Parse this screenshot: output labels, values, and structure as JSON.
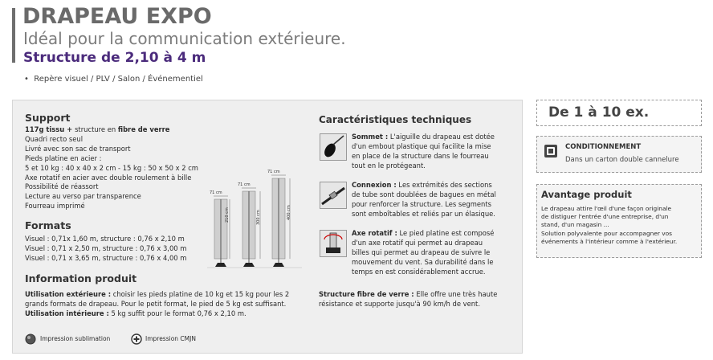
{
  "header": {
    "title": "DRAPEAU EXPO",
    "subtitle": "Idéal pour la communication extérieure.",
    "structure": "Structure de 2,10 à 4 m",
    "bullet": "Repère visuel / PLV / Salon / Événementiel"
  },
  "support": {
    "heading": "Support",
    "line1_bold_a": "117g tissu + ",
    "line1_mid": "structure en ",
    "line1_bold_b": "fibre de verre",
    "lines": [
      "Quadri recto seul",
      "Livré avec son sac de transport",
      "Pieds platine en acier :",
      "5 et 10 kg : 40 x 40 x 2 cm  -  15 kg : 50 x 50 x 2 cm",
      "Axe rotatif en acier avec double roulement à bille",
      "Possibilité de réassort",
      "Lecture au verso par transparence",
      "Fourreau imprimé"
    ]
  },
  "formats": {
    "heading": "Formats",
    "lines": [
      "Visuel : 0,71x 1,60 m, structure : 0,76 x 2,10 m",
      "Visuel : 0,71 x 2,50 m, structure : 0,76 x 3,00 m",
      "Visuel : 0,71 x 3,65 m, structure : 0,76 x 4,00 m"
    ]
  },
  "info": {
    "heading": "Information produit",
    "ext_label": "Utilisation extérieure :",
    "ext_text": " choisir les pieds platine de 10 kg et 15 kg pour les 2",
    "ext_line2": "grands formats de drapeau. Pour le petit format, le pied de 5 kg est suffisant.",
    "int_label": "Utilisation intérieure :",
    "int_text": " 5 kg suffit pour le format 0,76 x 2,10 m."
  },
  "flags": {
    "widths": [
      "71 cm",
      "71 cm",
      "71 cm"
    ],
    "heights": [
      "210 cm",
      "300 cm",
      "400 cm"
    ]
  },
  "caracteristiques": {
    "heading": "Caractéristiques techniques",
    "items": [
      {
        "label": "Sommet :",
        "lines": [
          " L'aiguille du drapeau est dotée",
          "d'un embout plastique qui facilite la mise",
          "en place de la structure dans le fourreau",
          "tout en le protégeant."
        ]
      },
      {
        "label": "Connexion :",
        "lines": [
          " Les extrémités des sections",
          "de tube sont doublées de bagues en métal",
          "pour renforcer la structure. Les segments",
          "sont emboîtables et reliés par un élasique."
        ]
      },
      {
        "label": "Axe rotatif :",
        "lines": [
          " Le pied platine est composé",
          "d'un axe rotatif qui permet au drapeau",
          "billes qui permet au drapeau de suivre le",
          "mouvement du vent. Sa durabilité dans le",
          "temps en est considérablement accrue."
        ]
      }
    ],
    "fibre_label": "Structure fibre de verre :",
    "fibre_text": " Elle offre une très haute",
    "fibre_line2": "résistance et supporte jusqu'à 90 km/h de vent."
  },
  "legend": {
    "sublimation": "Impression sublimation",
    "cmjn": "Impression CMJN"
  },
  "right": {
    "quantity": "De 1 à 10 ex.",
    "conditionnement_title": "CONDITIONNEMENT",
    "conditionnement_text": "Dans un carton double cannelure",
    "avantage_title": "Avantage produit",
    "avantage_lines": [
      "Le drapeau attire l'œil d'une façon originale",
      "de distiguer l'entrée d'une entreprise, d'un",
      "stand, d'un magasin ...",
      "Solution polyvalente pour accompagner vos",
      "événements à l'intérieur comme à l'extérieur."
    ]
  }
}
